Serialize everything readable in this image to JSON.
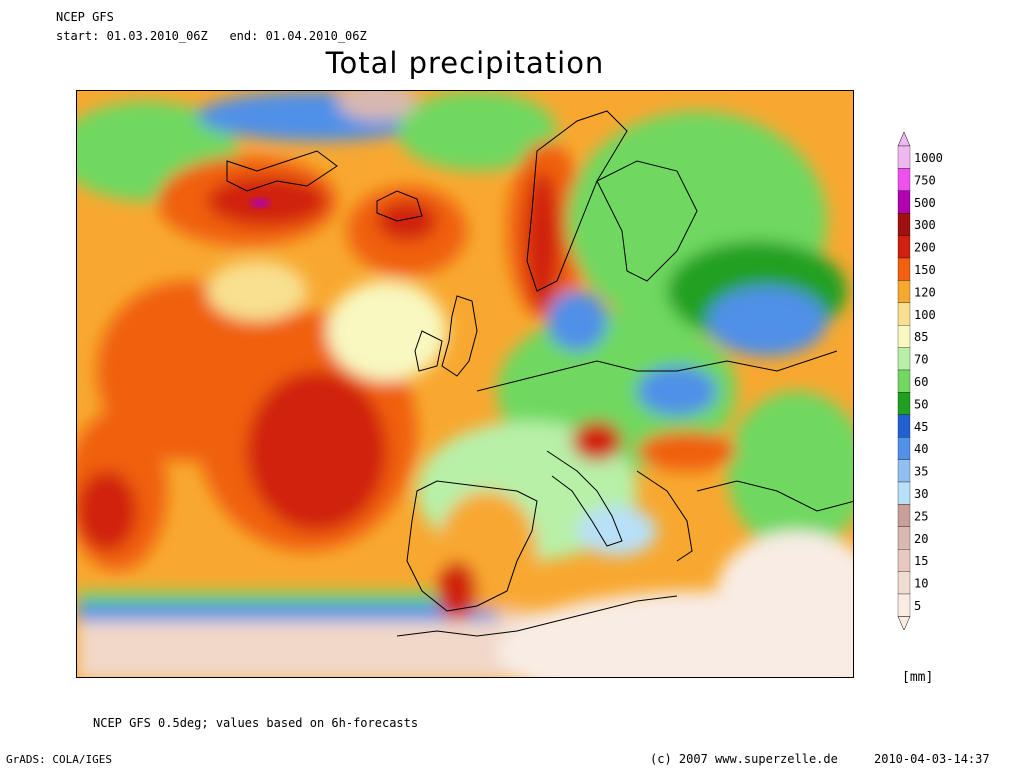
{
  "header": {
    "model": "NCEP GFS",
    "start_label": "start:",
    "start_value": "01.03.2010_06Z",
    "end_label": "end:",
    "end_value": "01.04.2010_06Z"
  },
  "title": "Total precipitation",
  "legend": {
    "levels": [
      "1000",
      "750",
      "500",
      "300",
      "200",
      "150",
      "120",
      "100",
      "85",
      "70",
      "60",
      "50",
      "45",
      "40",
      "35",
      "30",
      "25",
      "20",
      "15",
      "10",
      "5"
    ],
    "colors": [
      "#f0b8f0",
      "#f050f0",
      "#b000b0",
      "#a01010",
      "#d02010",
      "#f06010",
      "#f8a830",
      "#f8e090",
      "#f8f8c0",
      "#b8f0a8",
      "#70d860",
      "#20a020",
      "#2060d0",
      "#5090e8",
      "#90c0f0",
      "#b8e0f8",
      "#c8a098",
      "#d8b8b0",
      "#e8c8c0",
      "#f0dcd0",
      "#f8ece4"
    ],
    "unit": "[mm]"
  },
  "map": {
    "projection_colors": {
      "ocean_heavy": "#d02010",
      "ocean_orange": "#f06010",
      "land_dry": "#f8ece4",
      "coast_line": "#000000"
    }
  },
  "footer": {
    "note": "NCEP GFS 0.5deg; values based on 6h-forecasts",
    "software": "GrADS: COLA/IGES",
    "copyright": "(c) 2007 www.superzelle.de",
    "timestamp": "2010-04-03-14:37"
  }
}
